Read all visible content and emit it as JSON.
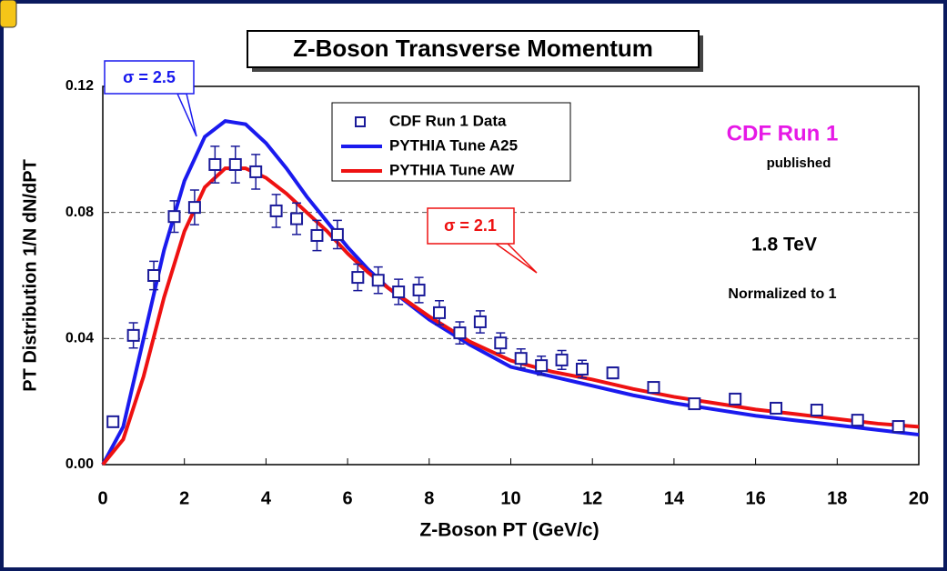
{
  "chart_data": {
    "type": "scatter",
    "title": "Z-Boson Transverse Momentum",
    "x_label": "Z-Boson PT (GeV/c)",
    "y_label": "PT Distribution 1/N dN/dPT",
    "xlim": [
      0,
      20
    ],
    "xticks": [
      0,
      2,
      4,
      6,
      8,
      10,
      12,
      14,
      16,
      18,
      20
    ],
    "ylim": [
      0,
      0.12
    ],
    "yticks": [
      {
        "value": 0,
        "label": "0.00"
      },
      {
        "value": 0.04,
        "label": "0.04"
      },
      {
        "value": 0.08,
        "label": "0.08"
      },
      {
        "value": 0.12,
        "label": "0.12"
      }
    ],
    "grid": true,
    "series": [
      {
        "name": "CDF Run 1 Data",
        "color": "#1a1a99",
        "kind": "points",
        "x": [
          0.25,
          0.75,
          1.25,
          1.75,
          2.25,
          2.75,
          3.25,
          3.75,
          4.25,
          4.75,
          5.25,
          5.75,
          6.25,
          6.75,
          7.25,
          7.75,
          8.25,
          8.75,
          9.25,
          9.75,
          10.25,
          10.75,
          11.25,
          11.75,
          12.5,
          13.5,
          14.5,
          15.5,
          16.5,
          17.5,
          18.5,
          19.5
        ],
        "values": [
          0.0136,
          0.041,
          0.06,
          0.0787,
          0.0816,
          0.0952,
          0.0952,
          0.0929,
          0.0805,
          0.078,
          0.0727,
          0.073,
          0.0594,
          0.0585,
          0.0548,
          0.0554,
          0.0482,
          0.0418,
          0.0453,
          0.0386,
          0.0337,
          0.0314,
          0.0332,
          0.0303,
          0.0291,
          0.0245,
          0.0193,
          0.0208,
          0.0179,
          0.0173,
          0.0141,
          0.0121
        ],
        "errors": [
          0.0015,
          0.004,
          0.0045,
          0.005,
          0.0055,
          0.0058,
          0.0058,
          0.0055,
          0.0052,
          0.005,
          0.0048,
          0.0045,
          0.0042,
          0.0042,
          0.004,
          0.004,
          0.0038,
          0.0035,
          0.0035,
          0.0032,
          0.003,
          0.003,
          0.003,
          0.0028,
          0.0018,
          0.0015,
          0.0012,
          0.0012,
          0.0011,
          0.0011,
          0.001,
          0.001
        ]
      },
      {
        "name": "PYTHIA Tune A25",
        "color": "#1a1aee",
        "kind": "line",
        "x": [
          0,
          0.5,
          1,
          1.5,
          2,
          2.5,
          3,
          3.5,
          4,
          4.5,
          5,
          5.5,
          6,
          6.5,
          7,
          8,
          9,
          10,
          11,
          12,
          13,
          14,
          15,
          16,
          17,
          18,
          19,
          20
        ],
        "values": [
          0,
          0.012,
          0.04,
          0.068,
          0.09,
          0.104,
          0.109,
          0.108,
          0.102,
          0.094,
          0.085,
          0.077,
          0.069,
          0.062,
          0.056,
          0.046,
          0.038,
          0.031,
          0.028,
          0.025,
          0.022,
          0.0195,
          0.0175,
          0.0155,
          0.014,
          0.0125,
          0.011,
          0.0095
        ]
      },
      {
        "name": "PYTHIA Tune AW",
        "color": "#ee1111",
        "kind": "line",
        "x": [
          0,
          0.5,
          1,
          1.5,
          2,
          2.5,
          3,
          3.5,
          4,
          4.5,
          5,
          5.5,
          6,
          6.5,
          7,
          8,
          9,
          10,
          11,
          12,
          13,
          14,
          15,
          16,
          17,
          18,
          19,
          20
        ],
        "values": [
          0,
          0.008,
          0.028,
          0.053,
          0.074,
          0.088,
          0.094,
          0.094,
          0.091,
          0.086,
          0.08,
          0.074,
          0.067,
          0.061,
          0.056,
          0.047,
          0.039,
          0.033,
          0.0295,
          0.027,
          0.024,
          0.0215,
          0.0195,
          0.0175,
          0.016,
          0.0145,
          0.013,
          0.012
        ]
      }
    ],
    "annotations": [
      "σ = 2.5",
      "σ = 2.1",
      "CDF Run 1",
      "published",
      "1.8 TeV",
      "Normalized to 1"
    ]
  }
}
